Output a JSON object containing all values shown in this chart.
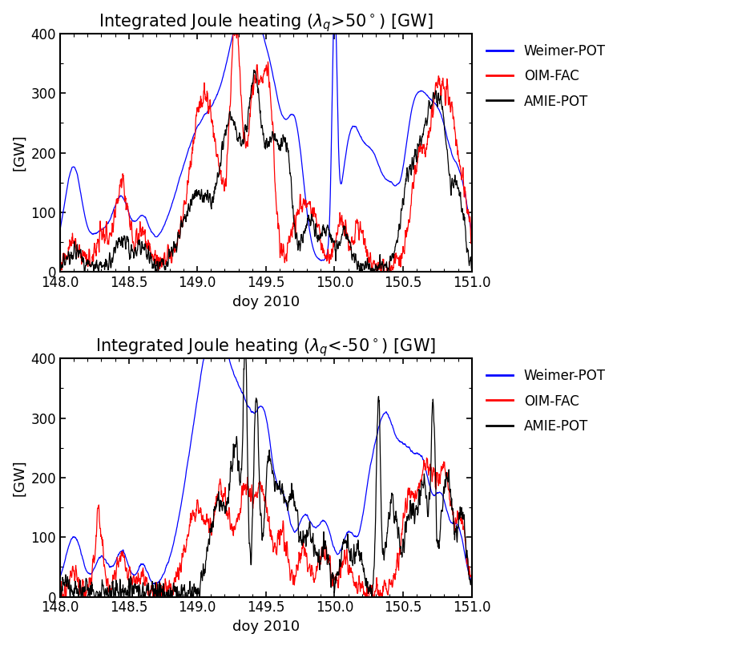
{
  "title_top": "Integrated Joule heating ($\\lambda_q$>50$^\\circ$) [GW]",
  "title_bottom": "Integrated Joule heating ($\\lambda_q$<-50$^\\circ$) [GW]",
  "xlabel": "doy 2010",
  "ylabel": "[GW]",
  "xlim": [
    148.0,
    151.0
  ],
  "ylim": [
    0,
    400
  ],
  "yticks": [
    0,
    100,
    200,
    300,
    400
  ],
  "xticks": [
    148.0,
    148.5,
    149.0,
    149.5,
    150.0,
    150.5,
    151.0
  ],
  "legend_labels": [
    "Weimer-POT",
    "OIM-FAC",
    "AMIE-POT"
  ],
  "line_colors": [
    "blue",
    "red",
    "black"
  ],
  "background_color": "white",
  "title_fontsize": 15,
  "label_fontsize": 13,
  "tick_fontsize": 12,
  "legend_fontsize": 12,
  "n_points": 1500
}
